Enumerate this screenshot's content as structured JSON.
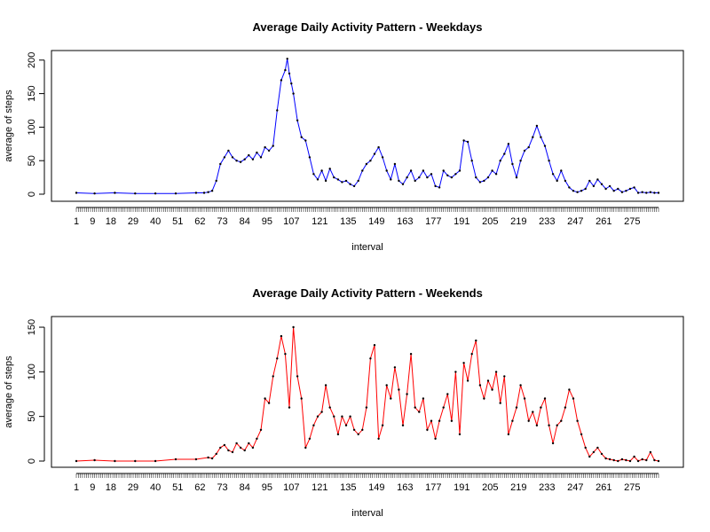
{
  "chart_data": [
    {
      "type": "line",
      "title": "Average Daily Activity Pattern - Weekdays",
      "xlabel": "interval",
      "ylabel": "average of steps",
      "xlim": [
        1,
        288
      ],
      "ylim": [
        0,
        205
      ],
      "y_ticks": [
        0,
        50,
        100,
        150,
        200
      ],
      "x_tick_labels": [
        "1",
        "9",
        "18",
        "29",
        "40",
        "51",
        "62",
        "73",
        "84",
        "95",
        "107",
        "121",
        "135",
        "149",
        "163",
        "177",
        "191",
        "205",
        "219",
        "233",
        "247",
        "261",
        "275"
      ],
      "line_color": "#0000ff",
      "point_color": "#000000",
      "grid": false,
      "series": [
        {
          "x": [
            1,
            10,
            20,
            30,
            40,
            50,
            60,
            64,
            66,
            68,
            70,
            72,
            74,
            76,
            78,
            80,
            82,
            84,
            86,
            88,
            90,
            92,
            94,
            96,
            98,
            100,
            102,
            104,
            105,
            106,
            107,
            108,
            110,
            112,
            114,
            116,
            118,
            120,
            122,
            124,
            126,
            128,
            130,
            132,
            134,
            136,
            138,
            140,
            142,
            144,
            146,
            148,
            150,
            152,
            154,
            156,
            158,
            160,
            162,
            164,
            166,
            168,
            170,
            172,
            174,
            176,
            178,
            180,
            182,
            184,
            186,
            188,
            190,
            192,
            194,
            196,
            198,
            200,
            202,
            204,
            206,
            208,
            210,
            212,
            214,
            216,
            218,
            220,
            222,
            224,
            226,
            228,
            230,
            232,
            234,
            236,
            238,
            240,
            242,
            244,
            246,
            248,
            250,
            252,
            254,
            256,
            258,
            260,
            262,
            264,
            266,
            268,
            270,
            272,
            274,
            276,
            278,
            280,
            282,
            284,
            286,
            288
          ],
          "y": [
            2,
            1,
            2,
            1,
            1,
            1,
            2,
            2,
            3,
            5,
            20,
            45,
            55,
            65,
            55,
            50,
            48,
            52,
            58,
            52,
            62,
            55,
            70,
            65,
            72,
            125,
            170,
            185,
            202,
            180,
            165,
            150,
            110,
            85,
            80,
            55,
            30,
            22,
            35,
            20,
            38,
            25,
            22,
            18,
            20,
            15,
            12,
            20,
            35,
            45,
            50,
            60,
            70,
            55,
            35,
            22,
            45,
            20,
            15,
            25,
            35,
            20,
            25,
            35,
            25,
            30,
            12,
            10,
            35,
            28,
            25,
            30,
            35,
            80,
            78,
            50,
            25,
            18,
            20,
            25,
            35,
            30,
            50,
            60,
            75,
            45,
            25,
            50,
            65,
            70,
            85,
            102,
            85,
            72,
            50,
            30,
            20,
            35,
            20,
            10,
            5,
            3,
            5,
            8,
            20,
            12,
            22,
            15,
            8,
            12,
            5,
            8,
            3,
            5,
            8,
            10,
            2,
            3,
            2,
            3,
            2,
            2
          ]
        }
      ]
    },
    {
      "type": "line",
      "title": "Average Daily Activity Pattern - Weekends",
      "xlabel": "interval",
      "ylabel": "average of steps",
      "xlim": [
        1,
        288
      ],
      "ylim": [
        0,
        155
      ],
      "y_ticks": [
        0,
        50,
        100,
        150
      ],
      "x_tick_labels": [
        "1",
        "9",
        "18",
        "29",
        "40",
        "51",
        "62",
        "73",
        "84",
        "95",
        "107",
        "121",
        "135",
        "149",
        "163",
        "177",
        "191",
        "205",
        "219",
        "233",
        "247",
        "261",
        "275"
      ],
      "line_color": "#ff0000",
      "point_color": "#000000",
      "grid": false,
      "series": [
        {
          "x": [
            1,
            10,
            20,
            30,
            40,
            50,
            60,
            66,
            68,
            70,
            72,
            74,
            76,
            78,
            80,
            82,
            84,
            86,
            88,
            90,
            92,
            94,
            96,
            98,
            100,
            102,
            104,
            106,
            108,
            110,
            112,
            114,
            116,
            118,
            120,
            122,
            124,
            126,
            128,
            130,
            132,
            134,
            136,
            138,
            140,
            142,
            144,
            146,
            148,
            150,
            152,
            154,
            156,
            158,
            160,
            162,
            164,
            166,
            168,
            170,
            172,
            174,
            176,
            178,
            180,
            182,
            184,
            186,
            188,
            190,
            192,
            194,
            196,
            198,
            200,
            202,
            204,
            206,
            208,
            210,
            212,
            214,
            216,
            218,
            220,
            222,
            224,
            226,
            228,
            230,
            232,
            234,
            236,
            238,
            240,
            242,
            244,
            246,
            248,
            250,
            252,
            254,
            256,
            258,
            260,
            262,
            264,
            266,
            268,
            270,
            272,
            274,
            276,
            278,
            280,
            282,
            284,
            286,
            288
          ],
          "y": [
            0,
            1,
            0,
            0,
            0,
            2,
            2,
            4,
            3,
            8,
            15,
            18,
            12,
            10,
            20,
            15,
            12,
            20,
            15,
            25,
            35,
            70,
            65,
            95,
            115,
            140,
            120,
            60,
            150,
            95,
            70,
            15,
            25,
            40,
            50,
            55,
            85,
            60,
            50,
            30,
            50,
            40,
            50,
            35,
            30,
            35,
            60,
            115,
            130,
            25,
            40,
            85,
            70,
            105,
            80,
            40,
            75,
            120,
            60,
            55,
            70,
            35,
            45,
            25,
            45,
            60,
            75,
            45,
            100,
            30,
            110,
            90,
            120,
            135,
            85,
            70,
            90,
            80,
            100,
            65,
            95,
            30,
            45,
            60,
            85,
            70,
            45,
            55,
            40,
            60,
            70,
            40,
            20,
            40,
            45,
            60,
            80,
            70,
            45,
            30,
            15,
            5,
            10,
            15,
            8,
            3,
            2,
            1,
            0,
            2,
            1,
            0,
            5,
            0,
            2,
            1,
            10,
            1,
            0
          ]
        }
      ]
    }
  ]
}
